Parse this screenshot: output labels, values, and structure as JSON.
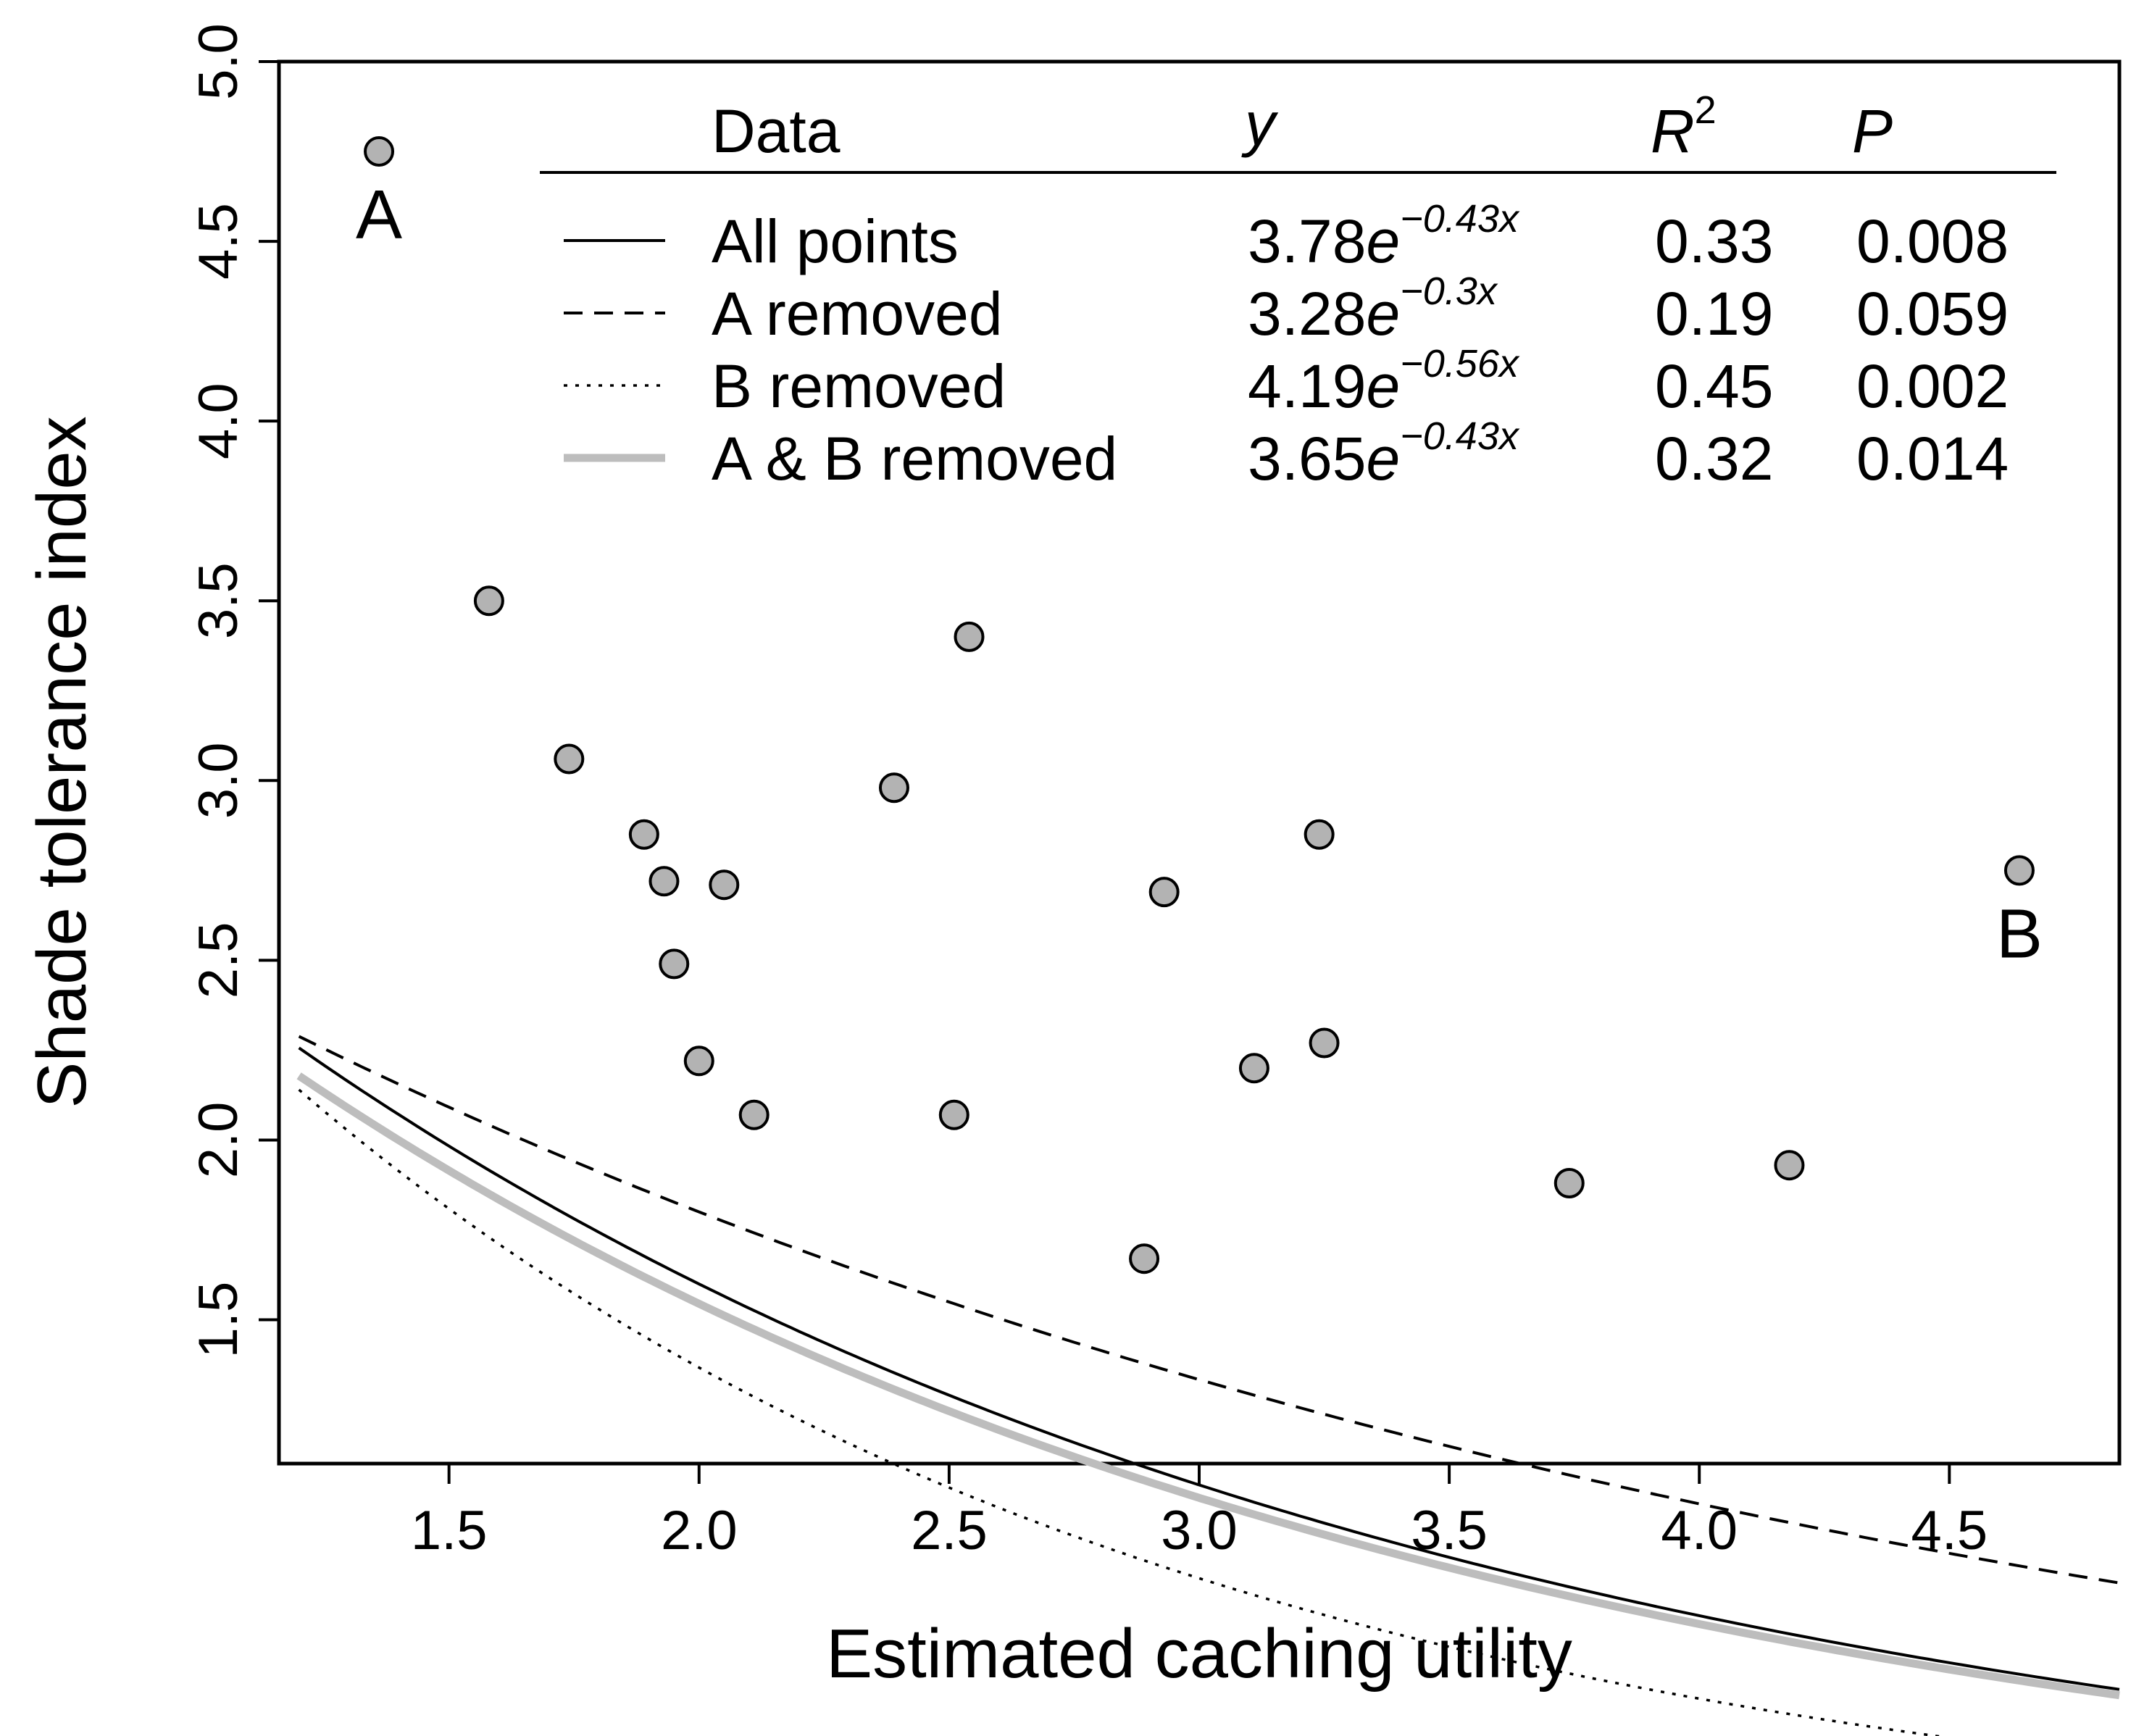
{
  "chart_data": {
    "type": "scatter",
    "title": "",
    "xlabel": "Estimated caching utility",
    "ylabel": "Shade tolerance index",
    "xlim": [
      1.16,
      4.84
    ],
    "ylim": [
      1.1,
      5.0
    ],
    "x_ticks": [
      "1.5",
      "2.0",
      "2.5",
      "3.0",
      "3.5",
      "4.0",
      "4.5"
    ],
    "y_ticks": [
      "1.5",
      "2.0",
      "2.5",
      "3.0",
      "3.5",
      "4.0",
      "4.5",
      "5.0"
    ],
    "x_tick_values": [
      1.5,
      2.0,
      2.5,
      3.0,
      3.5,
      4.0,
      4.5
    ],
    "y_tick_values": [
      1.5,
      2.0,
      2.5,
      3.0,
      3.5,
      4.0,
      4.5,
      5.0
    ],
    "points": [
      {
        "x": 1.36,
        "y": 4.75,
        "label": "A"
      },
      {
        "x": 1.58,
        "y": 3.5
      },
      {
        "x": 1.74,
        "y": 3.06
      },
      {
        "x": 1.89,
        "y": 2.85
      },
      {
        "x": 1.93,
        "y": 2.72
      },
      {
        "x": 1.95,
        "y": 2.49
      },
      {
        "x": 2.0,
        "y": 2.22
      },
      {
        "x": 2.05,
        "y": 2.71
      },
      {
        "x": 2.11,
        "y": 2.07
      },
      {
        "x": 2.39,
        "y": 2.98
      },
      {
        "x": 2.51,
        "y": 2.07
      },
      {
        "x": 2.54,
        "y": 3.4
      },
      {
        "x": 2.89,
        "y": 1.67
      },
      {
        "x": 2.93,
        "y": 2.69
      },
      {
        "x": 3.11,
        "y": 2.2
      },
      {
        "x": 3.24,
        "y": 2.85
      },
      {
        "x": 3.25,
        "y": 2.27
      },
      {
        "x": 3.74,
        "y": 1.88
      },
      {
        "x": 4.18,
        "y": 1.93
      },
      {
        "x": 4.64,
        "y": 2.75,
        "label": "B"
      }
    ],
    "point_color": "#b3b3b3",
    "curves": [
      {
        "name": "All points",
        "a": 3.78,
        "b": -0.43,
        "equation_coef": "3.78",
        "equation_exp": "−0.43x",
        "r2": "0.33",
        "p": "0.008",
        "style": "solid",
        "color": "#000000"
      },
      {
        "name": "A removed",
        "a": 3.28,
        "b": -0.3,
        "equation_coef": "3.28",
        "equation_exp": "−0.3x",
        "r2": "0.19",
        "p": "0.059",
        "style": "dashed",
        "color": "#000000"
      },
      {
        "name": "B removed",
        "a": 4.19,
        "b": -0.56,
        "equation_coef": "4.19",
        "equation_exp": "−0.56x",
        "r2": "0.45",
        "p": "0.002",
        "style": "dotted",
        "color": "#000000"
      },
      {
        "name": "A & B removed",
        "a": 3.65,
        "b": -0.43,
        "equation_coef": "3.65",
        "equation_exp": "−0.43x",
        "r2": "0.32",
        "p": "0.014",
        "style": "thick",
        "color": "#bdbdbd"
      }
    ],
    "curve_x_range": [
      1.2,
      4.84
    ],
    "legend": {
      "placement": "top-right",
      "headers": {
        "data": "Data",
        "y": "y",
        "r2": "R",
        "r2_sup": "2",
        "p": "P"
      }
    }
  }
}
